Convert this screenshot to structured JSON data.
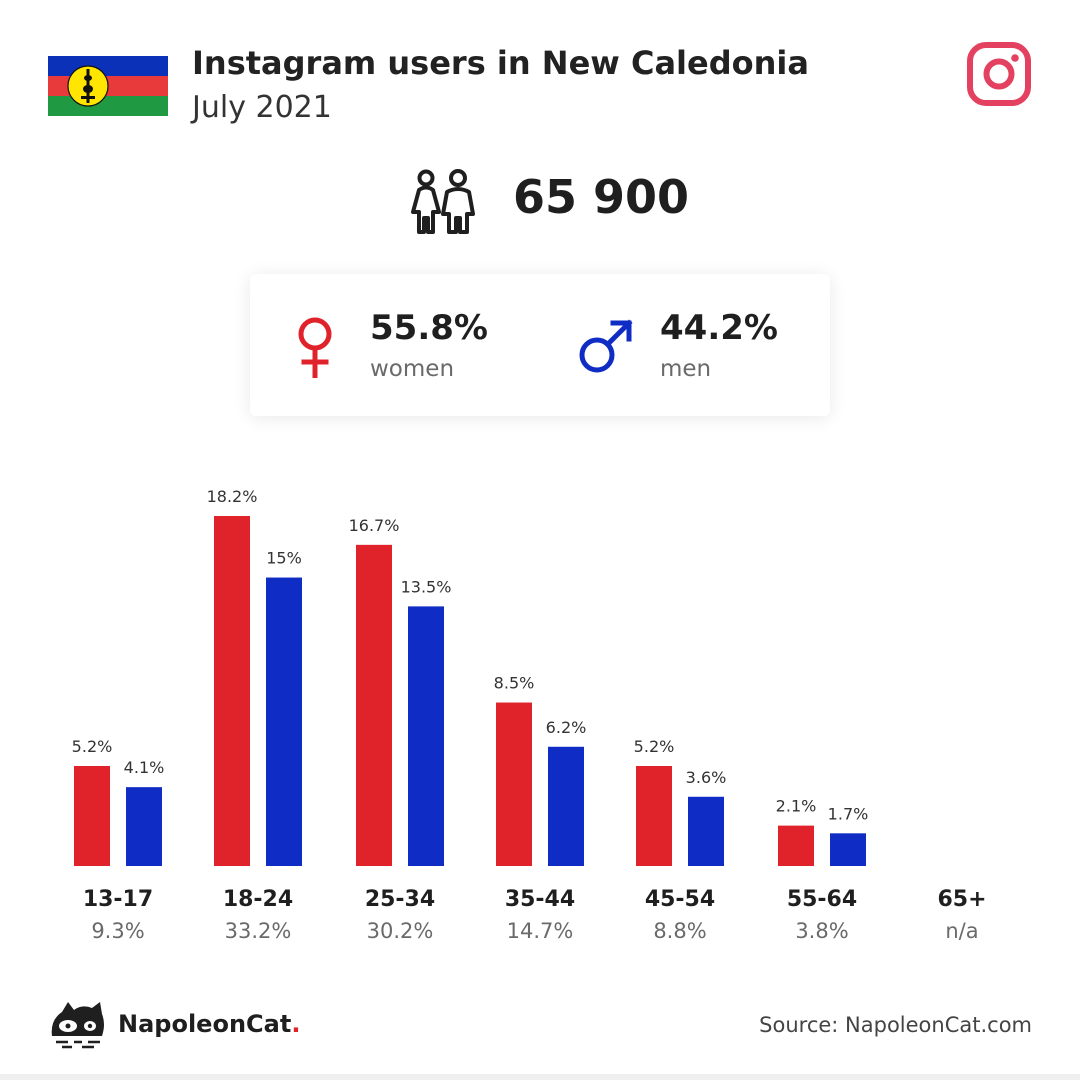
{
  "header": {
    "title": "Instagram users in New Caledonia",
    "subtitle": "July 2021"
  },
  "total": "65 900",
  "gender": {
    "women_value": "55.8%",
    "women_label": "women",
    "men_value": "44.2%",
    "men_label": "men"
  },
  "colors": {
    "women": "#e0232a",
    "men": "#0f2dc4",
    "instagram": "#e4405f"
  },
  "chart_data": {
    "type": "bar",
    "categories": [
      "13-17",
      "18-24",
      "25-34",
      "35-44",
      "45-54",
      "55-64",
      "65+"
    ],
    "group_totals": [
      "9.3%",
      "33.2%",
      "30.2%",
      "14.7%",
      "8.8%",
      "3.8%",
      "n/a"
    ],
    "series": [
      {
        "name": "women",
        "values": [
          5.2,
          18.2,
          16.7,
          8.5,
          5.2,
          2.1,
          null
        ],
        "labels": [
          "5.2%",
          "18.2%",
          "16.7%",
          "8.5%",
          "5.2%",
          "2.1%",
          ""
        ]
      },
      {
        "name": "men",
        "values": [
          4.1,
          15,
          13.5,
          6.2,
          3.6,
          1.7,
          null
        ],
        "labels": [
          "4.1%",
          "15%",
          "13.5%",
          "6.2%",
          "3.6%",
          "1.7%",
          ""
        ]
      }
    ],
    "ylim": [
      0,
      18.2
    ]
  },
  "footer": {
    "brand": "NapoleonCat",
    "brand_dot": ".",
    "source": "Source: NapoleonCat.com"
  }
}
